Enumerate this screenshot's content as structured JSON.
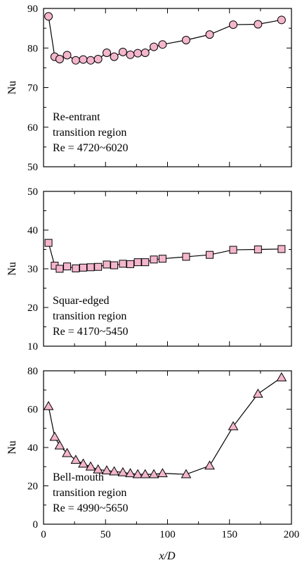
{
  "chart_data": [
    {
      "type": "line",
      "ylabel": "Nu",
      "xlim": [
        0,
        200
      ],
      "ylim": [
        50,
        90
      ],
      "yticks": [
        50,
        60,
        70,
        80,
        90
      ],
      "marker": "circle",
      "marker_color": "#f4b6cc",
      "annotation": [
        "Re-entrant",
        "transition region",
        "Re = 4720~6020"
      ],
      "x": [
        4,
        9,
        13,
        19,
        26,
        32,
        38,
        44,
        51,
        57,
        64,
        70,
        76,
        82,
        89,
        96,
        115,
        134,
        153,
        173,
        192
      ],
      "y": [
        88.0,
        77.8,
        77.2,
        78.2,
        76.9,
        77.1,
        76.9,
        77.2,
        78.8,
        77.8,
        79.0,
        78.3,
        78.7,
        78.8,
        80.3,
        80.9,
        82.0,
        83.4,
        85.9,
        86.0,
        87.1
      ]
    },
    {
      "type": "line",
      "ylabel": "Nu",
      "xlim": [
        0,
        200
      ],
      "ylim": [
        10,
        50
      ],
      "yticks": [
        10,
        20,
        30,
        40,
        50
      ],
      "marker": "square",
      "marker_color": "#f4b6cc",
      "annotation": [
        "Squar-edged",
        "transition region",
        "Re = 4170~5450"
      ],
      "x": [
        4,
        9,
        13,
        19,
        26,
        32,
        38,
        44,
        51,
        57,
        64,
        70,
        76,
        82,
        89,
        96,
        115,
        134,
        153,
        173,
        192
      ],
      "y": [
        36.7,
        30.8,
        30.0,
        30.6,
        30.1,
        30.3,
        30.4,
        30.5,
        31.1,
        30.9,
        31.3,
        31.2,
        31.7,
        31.7,
        32.4,
        32.6,
        33.1,
        33.6,
        34.9,
        35.0,
        35.1
      ]
    },
    {
      "type": "line",
      "ylabel": "Nu",
      "xlabel": "x/D",
      "xlim": [
        0,
        200
      ],
      "ylim": [
        0,
        80
      ],
      "xticks": [
        0,
        50,
        100,
        150,
        200
      ],
      "yticks": [
        0,
        20,
        40,
        60,
        80
      ],
      "marker": "triangle",
      "marker_color": "#f4b6cc",
      "annotation": [
        "Bell-mouth",
        "transition region",
        "Re = 4990~5650"
      ],
      "x": [
        4,
        9,
        13,
        19,
        26,
        32,
        38,
        44,
        51,
        57,
        64,
        70,
        76,
        82,
        89,
        96,
        115,
        134,
        153,
        173,
        192
      ],
      "y": [
        61.5,
        45.5,
        41.0,
        37.0,
        33.5,
        31.5,
        30.0,
        28.5,
        28.0,
        27.5,
        27.0,
        26.5,
        26.0,
        26.0,
        26.0,
        26.5,
        26.0,
        30.5,
        51.0,
        68.0,
        76.5
      ]
    }
  ]
}
